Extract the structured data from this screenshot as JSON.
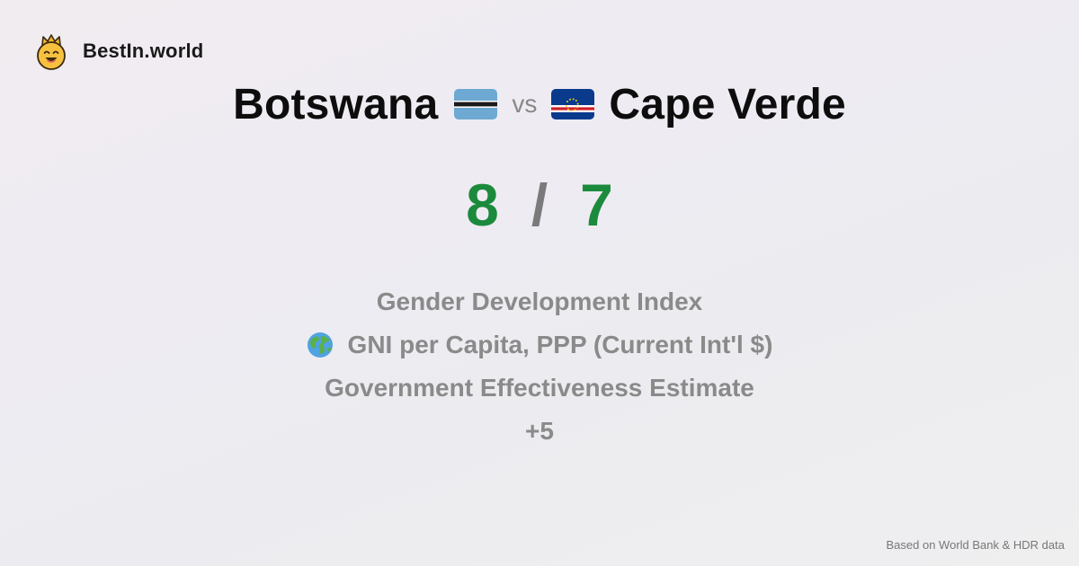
{
  "brand": {
    "name": "BestIn.world",
    "icon": "crowned-smiley-icon"
  },
  "comparison": {
    "left_country": "Botswana",
    "left_flag": "botswana-flag-icon",
    "vs_label": "vs",
    "right_country": "Cape Verde",
    "right_flag": "cape-verde-flag-icon"
  },
  "scores": {
    "left": "8",
    "separator": "/",
    "right": "7"
  },
  "metrics": [
    {
      "label": "Gender Development Index",
      "icon": ""
    },
    {
      "label": "GNI per Capita, PPP (Current Int'l $)",
      "icon": "globe-icon"
    },
    {
      "label": "Government Effectiveness Estimate",
      "icon": ""
    },
    {
      "label": "+5",
      "icon": ""
    }
  ],
  "footer": {
    "source": "Based on World Bank & HDR data"
  },
  "colors": {
    "score": "#1c8a3c",
    "muted_text": "#8a8a8a",
    "separator": "#7a7a7a"
  }
}
